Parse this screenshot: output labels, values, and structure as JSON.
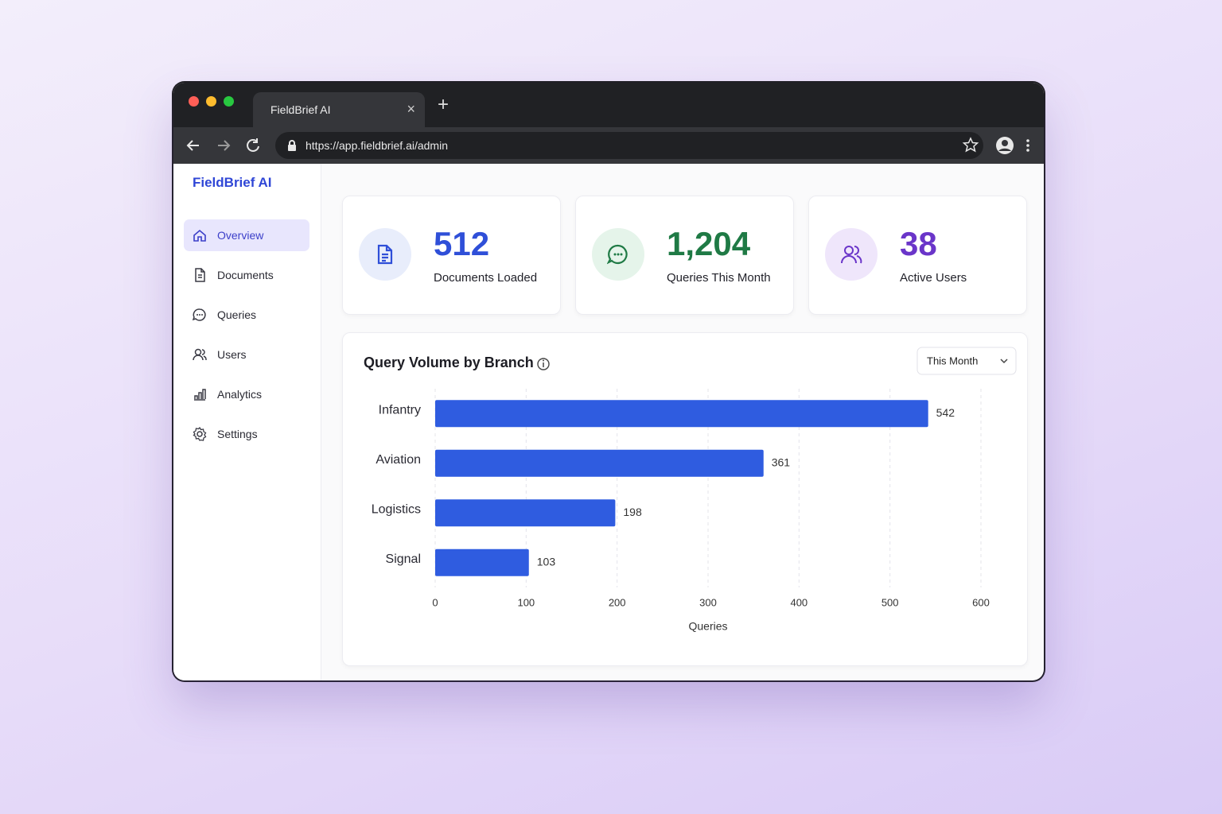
{
  "browser": {
    "tab_title": "FieldBrief AI",
    "url": "https://app.fieldbrief.ai/admin"
  },
  "sidebar": {
    "brand": "FieldBrief AI",
    "nav": [
      "Overview",
      "Documents",
      "Queries",
      "Users",
      "Analytics",
      "Settings"
    ],
    "active": 0
  },
  "stats": [
    {
      "value": "512",
      "label": "Documents Loaded",
      "color": "#2f4fd8"
    },
    {
      "value": "1,204",
      "label": "Queries This Month",
      "color": "#1f7a45"
    },
    {
      "value": "38",
      "label": "Active Users",
      "color": "#6a35c9"
    }
  ],
  "chart_data": {
    "type": "bar",
    "orientation": "horizontal",
    "title": "Query Volume by Branch",
    "period": "This Month",
    "categories": [
      "Infantry",
      "Aviation",
      "Logistics",
      "Signal"
    ],
    "values": [
      542,
      361,
      198,
      103
    ],
    "color": "#2f5ce0",
    "xlabel": "Queries",
    "xlim": [
      0,
      600
    ],
    "xticks": [
      0,
      100,
      200,
      300,
      400,
      500,
      600
    ],
    "grid": true
  }
}
